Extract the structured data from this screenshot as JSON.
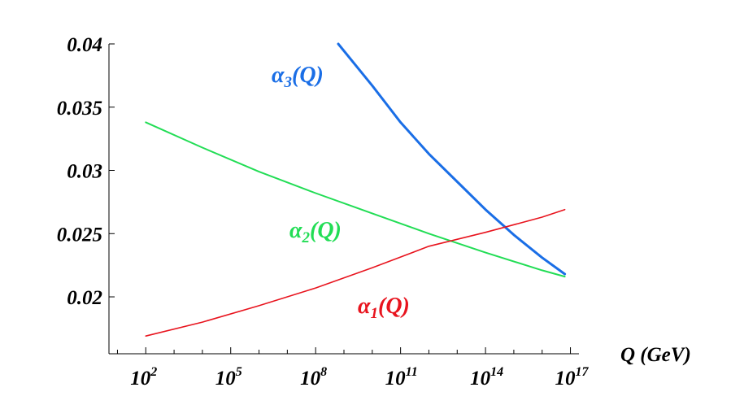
{
  "chart_data": {
    "type": "line",
    "xlabel": "Q (GeV)",
    "xscale": "log10",
    "x_ticks": [
      {
        "value": 2,
        "label": "10",
        "exp": "2"
      },
      {
        "value": 5,
        "label": "10",
        "exp": "5"
      },
      {
        "value": 8,
        "label": "10",
        "exp": "8"
      },
      {
        "value": 11,
        "label": "10",
        "exp": "11"
      },
      {
        "value": 14,
        "label": "10",
        "exp": "14"
      },
      {
        "value": 17,
        "label": "10",
        "exp": "17"
      }
    ],
    "y_ticks": [
      {
        "value": 0.02,
        "label": "0.02"
      },
      {
        "value": 0.025,
        "label": "0.025"
      },
      {
        "value": 0.03,
        "label": "0.03"
      },
      {
        "value": 0.035,
        "label": "0.035"
      },
      {
        "value": 0.04,
        "label": "0.04"
      }
    ],
    "xlim": [
      0.7,
      17.3
    ],
    "ylim": [
      0.0155,
      0.04
    ],
    "grid": false,
    "series": [
      {
        "label": "α",
        "sub": "3",
        "arg": "(Q)",
        "color": "#1a6ee6",
        "log10_x": [
          8.8,
          10,
          11,
          12,
          13,
          14,
          15,
          16,
          16.8
        ],
        "y": [
          0.04,
          0.0367,
          0.0338,
          0.0313,
          0.0291,
          0.0269,
          0.0249,
          0.0231,
          0.0218
        ]
      },
      {
        "label": "α",
        "sub": "2",
        "arg": "(Q)",
        "color": "#22dd55",
        "log10_x": [
          2,
          4,
          6,
          8,
          10,
          12,
          14,
          16,
          16.8
        ],
        "y": [
          0.0338,
          0.0318,
          0.0299,
          0.0282,
          0.0266,
          0.025,
          0.0235,
          0.0221,
          0.0216
        ]
      },
      {
        "label": "α",
        "sub": "1",
        "arg": "(Q)",
        "color": "#e8141e",
        "log10_x": [
          2,
          4,
          6,
          8,
          10,
          12,
          14,
          16,
          16.8
        ],
        "y": [
          0.0169,
          0.018,
          0.0193,
          0.0207,
          0.0223,
          0.024,
          0.0251,
          0.0263,
          0.0269
        ]
      }
    ]
  }
}
